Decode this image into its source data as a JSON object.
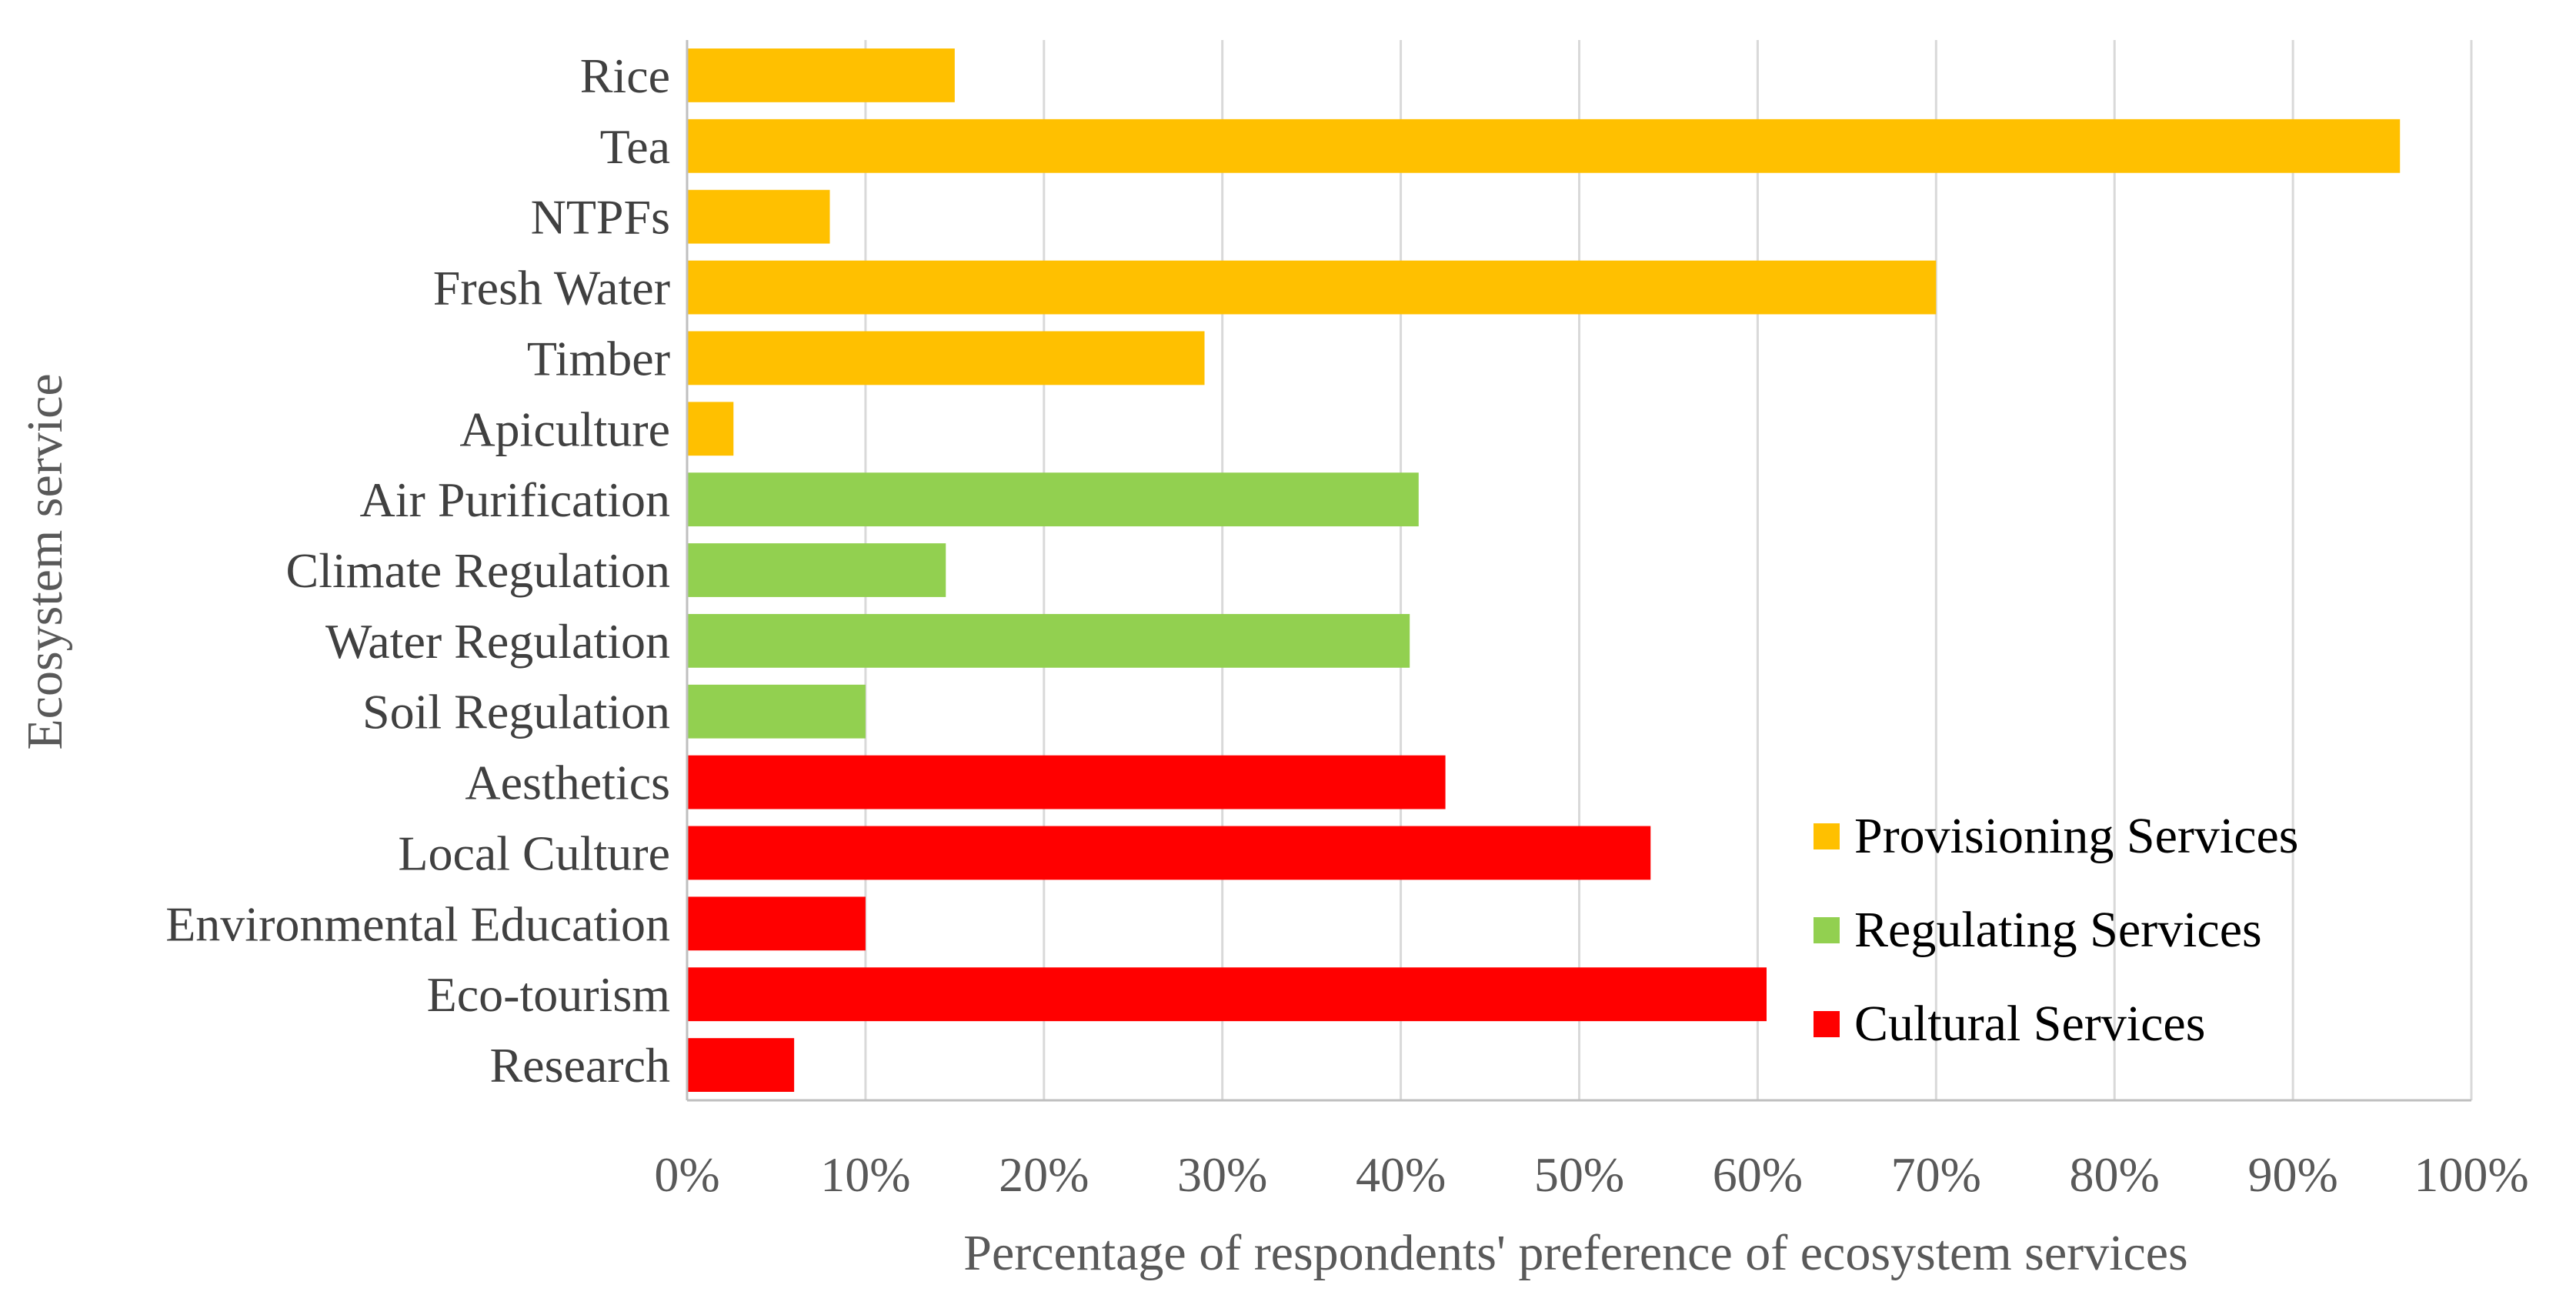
{
  "chart_data": {
    "type": "bar",
    "orientation": "horizontal",
    "title": "",
    "xlabel": "Percentage of respondents' preference of ecosystem services",
    "ylabel": "Ecosystem service",
    "xlim": [
      0,
      100
    ],
    "x_ticks": [
      0,
      10,
      20,
      30,
      40,
      50,
      60,
      70,
      80,
      90,
      100
    ],
    "tick_suffix": "%",
    "grid": "vertical",
    "legend_position": "bottom-right",
    "colors": {
      "provisioning": "#FFC000",
      "regulating": "#92D050",
      "cultural": "#FF0000",
      "grid": "#D9D9D9",
      "axis": "#BFBFBF"
    },
    "legend": [
      {
        "key": "provisioning",
        "label": "Provisioning Services"
      },
      {
        "key": "regulating",
        "label": "Regulating Services"
      },
      {
        "key": "cultural",
        "label": "Cultural Services"
      }
    ],
    "categories": [
      "Rice",
      "Tea",
      "NTPFs",
      "Fresh Water",
      "Timber",
      "Apiculture",
      "Air Purification",
      "Climate Regulation",
      "Water Regulation",
      "Soil Regulation",
      "Aesthetics",
      "Local Culture",
      "Environmental Education",
      "Eco-tourism",
      "Research"
    ],
    "groups": [
      "provisioning",
      "provisioning",
      "provisioning",
      "provisioning",
      "provisioning",
      "provisioning",
      "regulating",
      "regulating",
      "regulating",
      "regulating",
      "cultural",
      "cultural",
      "cultural",
      "cultural",
      "cultural"
    ],
    "values": [
      15,
      96,
      8,
      70,
      29,
      2.6,
      41,
      14.5,
      40.5,
      10,
      42.5,
      54,
      10,
      60.5,
      6
    ]
  }
}
